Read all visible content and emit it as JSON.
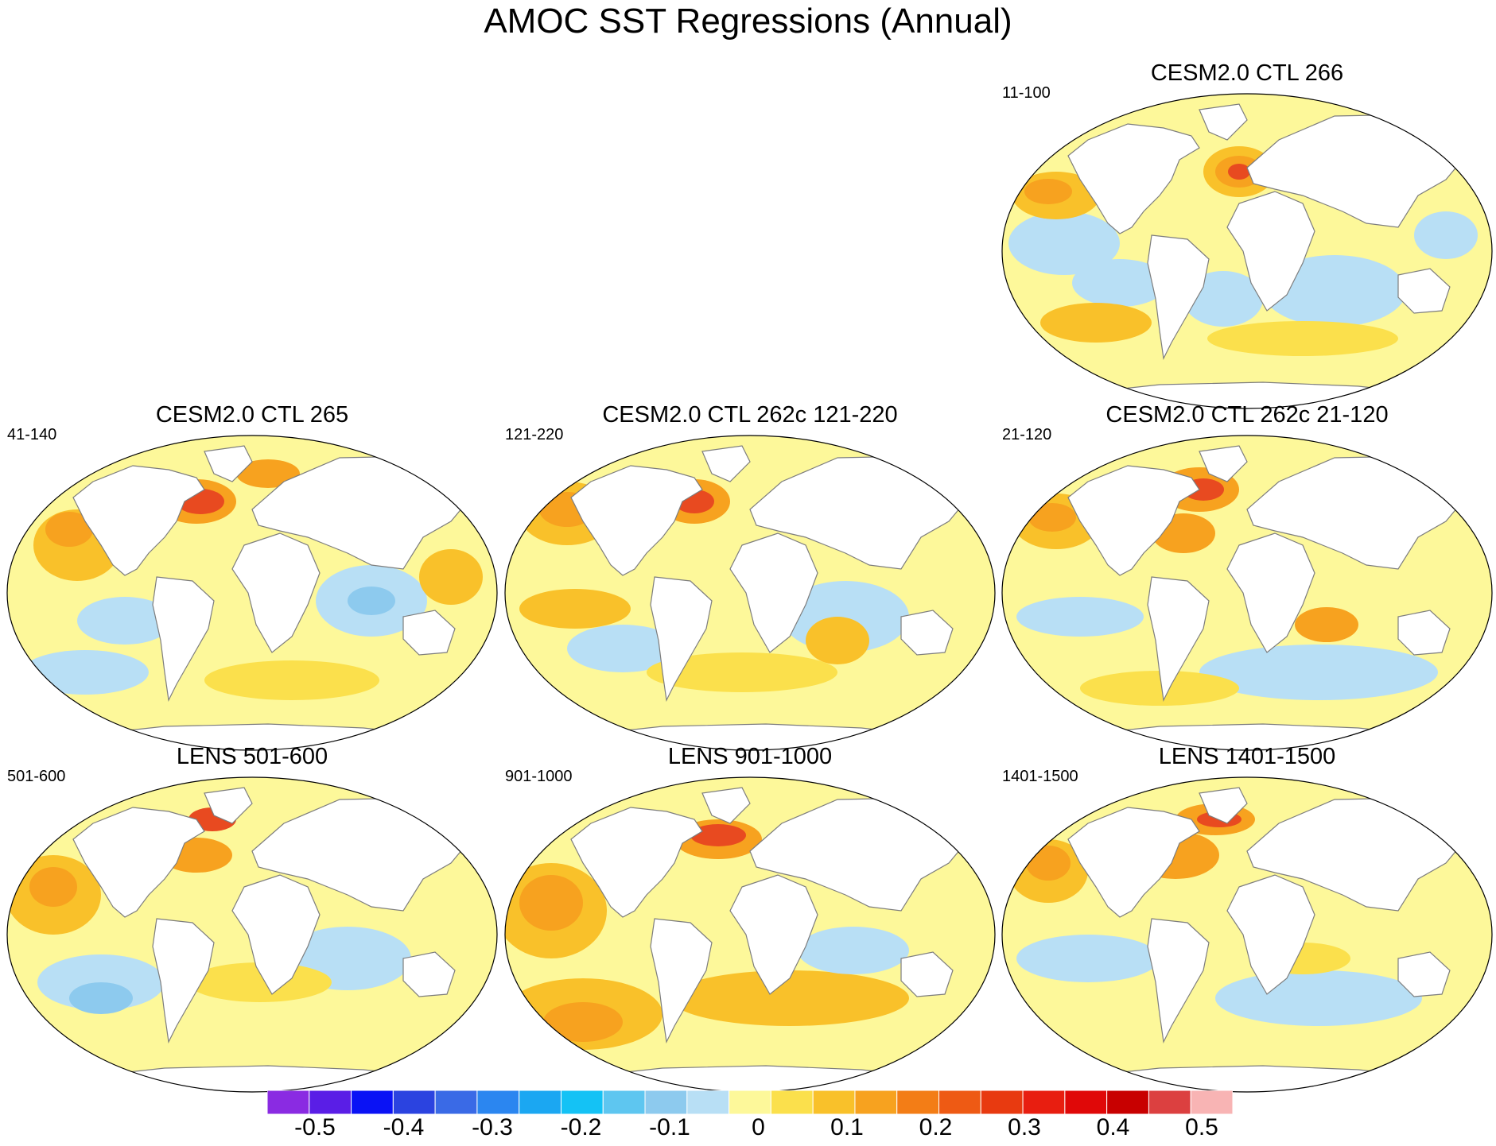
{
  "title": "AMOC SST Regressions (Annual)",
  "colors": {
    "ocean_base": "#fdf89a",
    "light_blue": "#b8dff5",
    "mid_blue": "#8dcaee",
    "yellow": "#fbe04c",
    "gold": "#f9c12a",
    "orange": "#f7a21f",
    "dark_orange": "#f37d16",
    "red_orange": "#e84a20",
    "red": "#e01010",
    "land": "#ffffff",
    "coast": "#7d7d7d"
  },
  "panels": [
    {
      "id": "ctl266",
      "title": "CESM2.0 CTL 266",
      "years": "11-100"
    },
    {
      "id": "ctl265",
      "title": "CESM2.0 CTL 265",
      "years": "41-140"
    },
    {
      "id": "ctl262c_121",
      "title": "CESM2.0 CTL 262c 121-220",
      "years": "121-220"
    },
    {
      "id": "ctl262c_21",
      "title": "CESM2.0 CTL 262c 21-120",
      "years": "21-120"
    },
    {
      "id": "lens501",
      "title": "LENS 501-600",
      "years": "501-600"
    },
    {
      "id": "lens901",
      "title": "LENS 901-1000",
      "years": "901-1000"
    },
    {
      "id": "lens1401",
      "title": "LENS 1401-1500",
      "years": "1401-1500"
    }
  ],
  "colorbar": {
    "colors": [
      "#8a2be2",
      "#5a1ee6",
      "#0a12f5",
      "#2b43e0",
      "#3a6ae6",
      "#2b86f0",
      "#1ba7f2",
      "#14c2f5",
      "#5ec6f0",
      "#8dcaee",
      "#b8dff5",
      "#fdf89a",
      "#fbe04c",
      "#f9c12a",
      "#f7a21f",
      "#f37d16",
      "#ee5a14",
      "#e83a10",
      "#e81e10",
      "#e00808",
      "#c80000",
      "#dc4040",
      "#f8b4b4"
    ],
    "labels": [
      "-0.5",
      "-0.4",
      "-0.3",
      "-0.2",
      "-0.1",
      "0",
      "0.1",
      "0.2",
      "0.3",
      "0.4",
      "0.5"
    ]
  }
}
